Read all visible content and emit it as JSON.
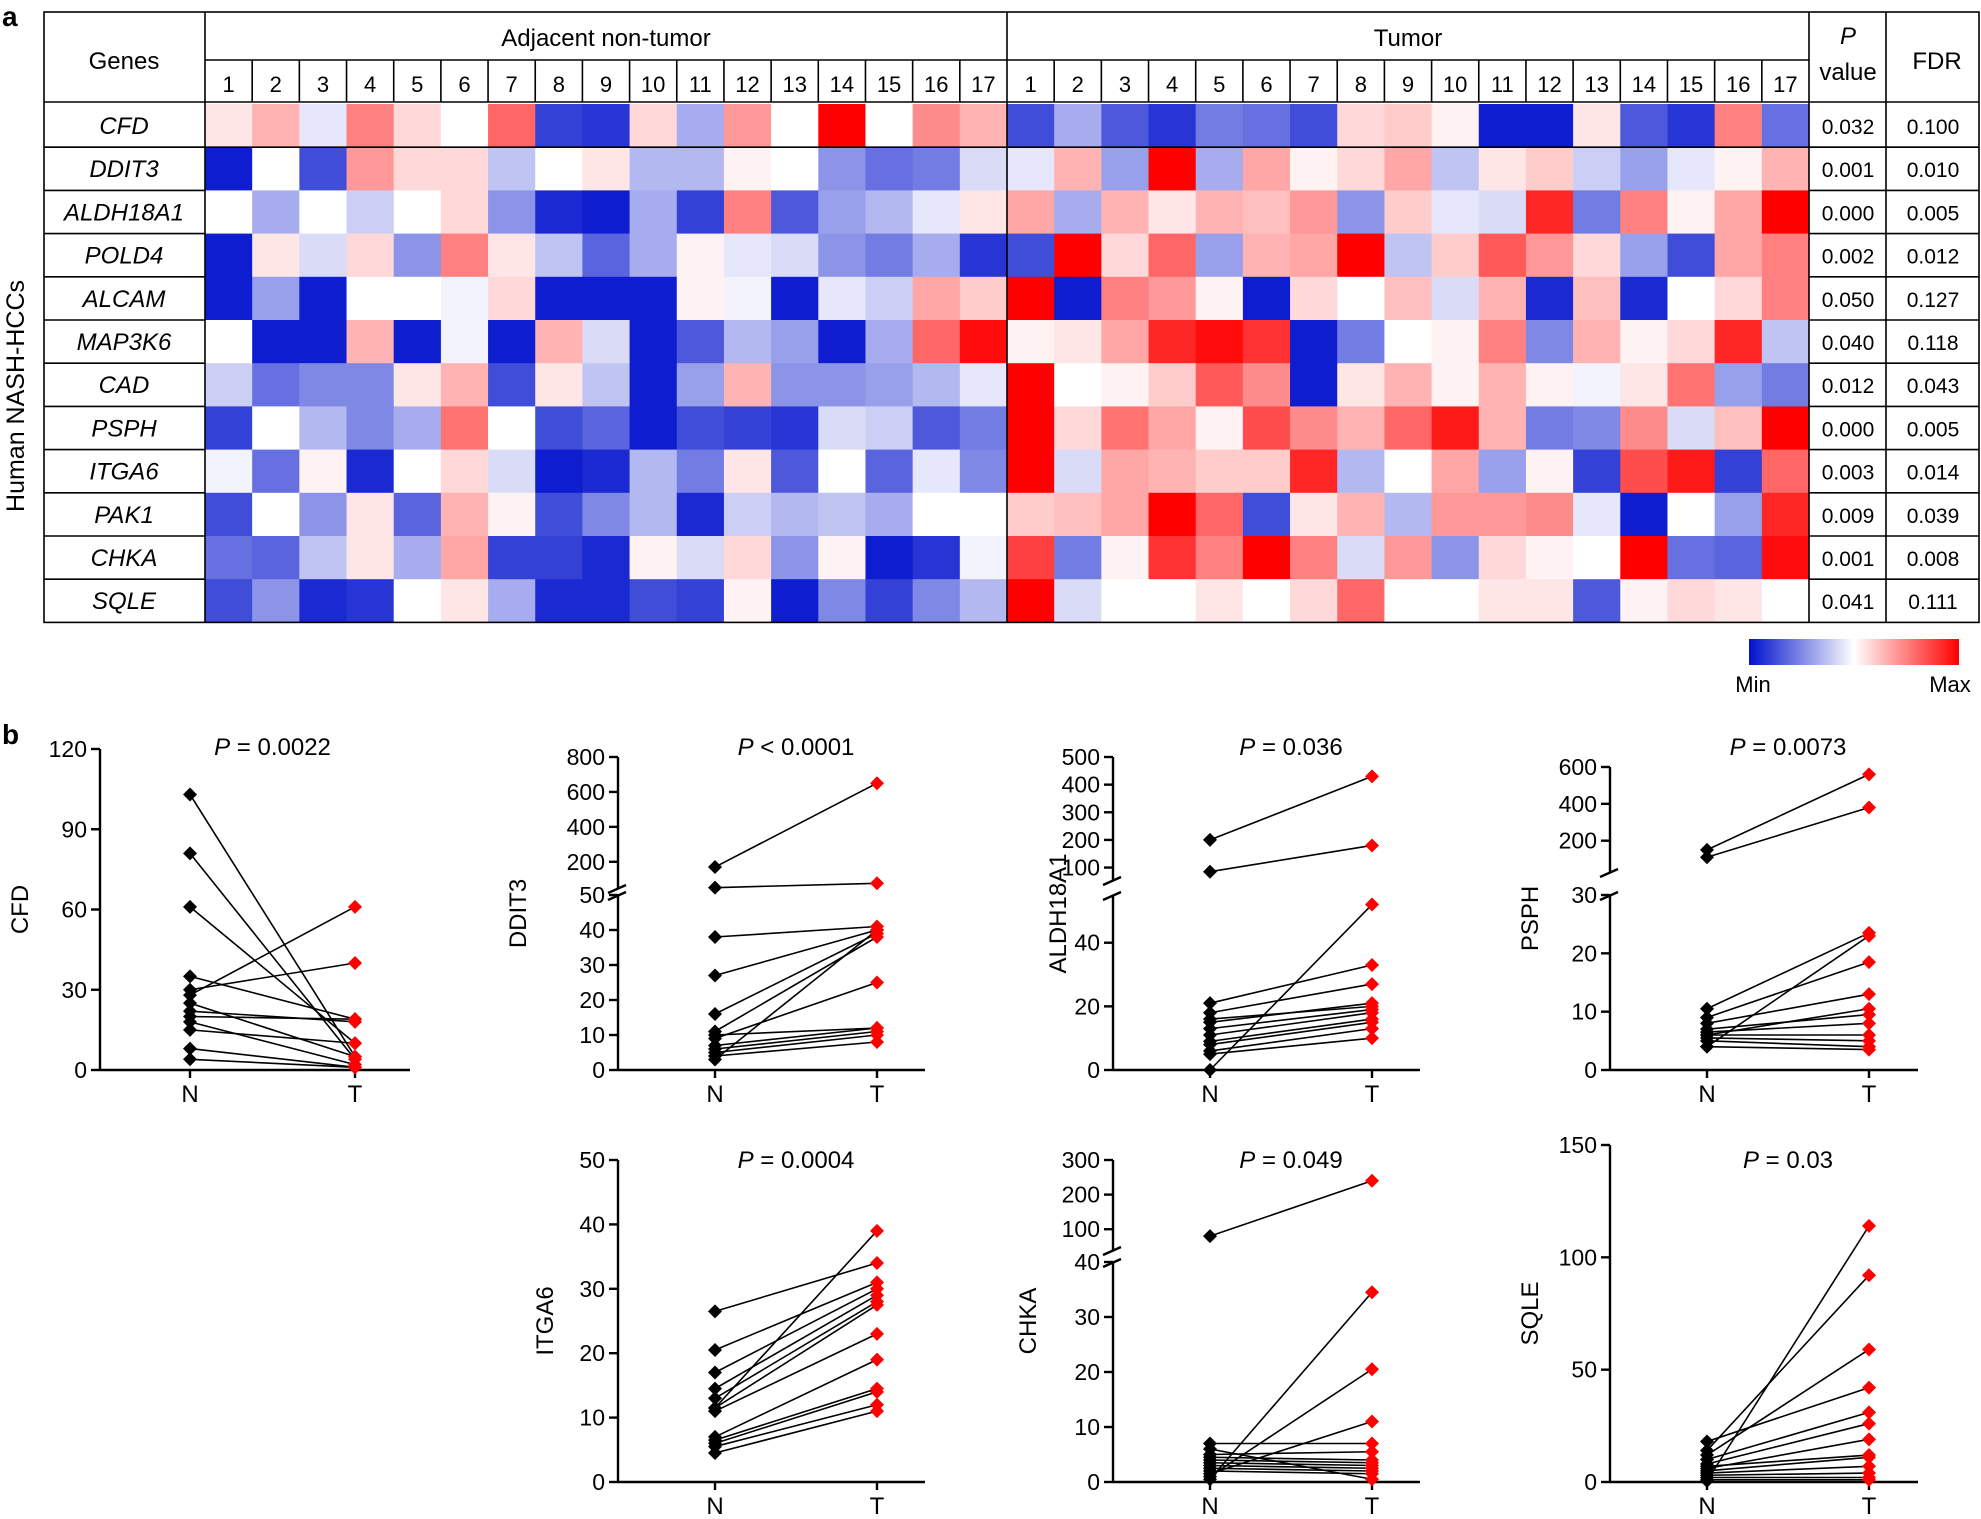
{
  "panel_labels": {
    "a": "a",
    "b": "b"
  },
  "heatmap": {
    "genes_header": "Genes",
    "group_adjacent": "Adjacent non-tumor",
    "group_tumor": "Tumor",
    "side_label": "Human NASH-HCCs",
    "p_header_line1": "P",
    "p_header_line2": "value",
    "fdr_header": "FDR",
    "columns": [
      "1",
      "2",
      "3",
      "4",
      "5",
      "6",
      "7",
      "8",
      "9",
      "10",
      "11",
      "12",
      "13",
      "14",
      "15",
      "16",
      "17"
    ],
    "legend_min": "Min",
    "legend_max": "Max",
    "colors": {
      "min": "#0011cc",
      "mid": "#ffffff",
      "max": "#ff0000"
    }
  },
  "chart_data": [
    {
      "type": "heatmap",
      "title": "",
      "row_labels": [
        "CFD",
        "DDIT3",
        "ALDH18A1",
        "POLD4",
        "ALCAM",
        "MAP3K6",
        "CAD",
        "PSPH",
        "ITGA6",
        "PAK1",
        "CHKA",
        "SQLE"
      ],
      "column_groups": [
        "Adjacent non-tumor",
        "Tumor"
      ],
      "columns": [
        "1",
        "2",
        "3",
        "4",
        "5",
        "6",
        "7",
        "8",
        "9",
        "10",
        "11",
        "12",
        "13",
        "14",
        "15",
        "16",
        "17"
      ],
      "scale": "-1 (Min, blue) to 1 (Max, red)",
      "values_adjacent": [
        [
          0.1,
          0.3,
          -0.1,
          0.5,
          0.15,
          0,
          0.6,
          -0.8,
          -0.85,
          0.15,
          -0.35,
          0.4,
          0,
          1,
          0,
          0.45,
          0.3
        ],
        [
          -0.95,
          0,
          -0.75,
          0.4,
          0.15,
          0.15,
          -0.25,
          0,
          0.1,
          -0.3,
          -0.3,
          0.05,
          0,
          -0.45,
          -0.6,
          -0.55,
          -0.15
        ],
        [
          0,
          -0.35,
          0,
          -0.2,
          0,
          0.15,
          -0.45,
          -0.9,
          -0.95,
          -0.35,
          -0.8,
          0.5,
          -0.7,
          -0.4,
          -0.3,
          -0.1,
          0.1
        ],
        [
          -0.95,
          0.1,
          -0.15,
          0.15,
          -0.45,
          0.5,
          0.1,
          -0.25,
          -0.65,
          -0.35,
          0.05,
          -0.1,
          -0.15,
          -0.45,
          -0.55,
          -0.35,
          -0.85
        ],
        [
          -0.95,
          -0.4,
          -0.95,
          0,
          0,
          -0.05,
          0.15,
          -0.95,
          -0.95,
          -0.95,
          0.05,
          -0.05,
          -0.95,
          -0.1,
          -0.2,
          0.35,
          0.2
        ],
        [
          0,
          -0.95,
          -0.95,
          0.3,
          -0.95,
          -0.05,
          -0.95,
          0.3,
          -0.15,
          -0.95,
          -0.7,
          -0.3,
          -0.4,
          -0.95,
          -0.35,
          0.6,
          0.95
        ],
        [
          -0.2,
          -0.6,
          -0.5,
          -0.5,
          0.1,
          0.3,
          -0.75,
          0.1,
          -0.25,
          -0.95,
          -0.4,
          0.3,
          -0.45,
          -0.45,
          -0.4,
          -0.3,
          -0.1
        ],
        [
          -0.8,
          0,
          -0.3,
          -0.5,
          -0.35,
          0.55,
          0,
          -0.75,
          -0.65,
          -0.95,
          -0.75,
          -0.8,
          -0.85,
          -0.15,
          -0.2,
          -0.7,
          -0.55
        ],
        [
          -0.05,
          -0.6,
          0.05,
          -0.9,
          0,
          0.15,
          -0.15,
          -0.95,
          -0.9,
          -0.3,
          -0.55,
          0.1,
          -0.7,
          0,
          -0.65,
          -0.1,
          -0.5
        ],
        [
          -0.75,
          0,
          -0.45,
          0.1,
          -0.65,
          0.3,
          0.05,
          -0.75,
          -0.5,
          -0.3,
          -0.9,
          -0.2,
          -0.3,
          -0.25,
          -0.35,
          0,
          0
        ],
        [
          -0.6,
          -0.65,
          -0.25,
          0.1,
          -0.35,
          0.35,
          -0.8,
          -0.8,
          -0.9,
          0.05,
          -0.15,
          0.15,
          -0.45,
          0.05,
          -0.95,
          -0.85,
          -0.05
        ],
        [
          -0.75,
          -0.45,
          -0.9,
          -0.85,
          0,
          0.1,
          -0.35,
          -0.9,
          -0.9,
          -0.75,
          -0.8,
          0.05,
          -0.95,
          -0.5,
          -0.8,
          -0.5,
          -0.3
        ]
      ],
      "values_tumor": [
        [
          -0.75,
          -0.35,
          -0.7,
          -0.85,
          -0.55,
          -0.6,
          -0.75,
          0.15,
          0.2,
          0.05,
          -0.95,
          -0.95,
          0.1,
          -0.7,
          -0.85,
          0.5,
          -0.6
        ],
        [
          -0.1,
          0.3,
          -0.4,
          1,
          -0.35,
          0.35,
          0.05,
          0.15,
          0.35,
          -0.25,
          0.1,
          0.2,
          -0.2,
          -0.4,
          -0.1,
          0.05,
          0.3
        ],
        [
          0.35,
          -0.35,
          0.3,
          0.1,
          0.3,
          0.25,
          0.4,
          -0.45,
          0.2,
          -0.1,
          -0.15,
          0.85,
          -0.55,
          0.5,
          0.05,
          0.35,
          1
        ],
        [
          -0.75,
          1,
          0.15,
          0.6,
          -0.4,
          0.3,
          0.35,
          1,
          -0.25,
          0.2,
          0.65,
          0.4,
          0.15,
          -0.4,
          -0.75,
          0.35,
          0.5
        ],
        [
          1,
          -0.95,
          0.5,
          0.4,
          0.05,
          -0.95,
          0.15,
          0,
          0.25,
          -0.15,
          0.3,
          -0.9,
          0.25,
          -0.9,
          0,
          0.15,
          0.5
        ],
        [
          0.05,
          0.1,
          0.35,
          0.85,
          0.95,
          0.8,
          -0.95,
          -0.55,
          0,
          0.05,
          0.5,
          -0.5,
          0.3,
          0.05,
          0.15,
          0.85,
          -0.25
        ],
        [
          1,
          0,
          0.05,
          0.2,
          0.65,
          0.45,
          -0.95,
          0.1,
          0.3,
          0.05,
          0.3,
          0.05,
          -0.05,
          0.1,
          0.55,
          -0.4,
          -0.55
        ],
        [
          1,
          0.15,
          0.55,
          0.35,
          0.05,
          0.7,
          0.45,
          0.3,
          0.6,
          0.9,
          0.3,
          -0.55,
          -0.5,
          0.45,
          -0.15,
          0.25,
          1
        ],
        [
          1,
          -0.15,
          0.35,
          0.3,
          0.2,
          0.2,
          0.85,
          -0.3,
          0,
          0.35,
          -0.4,
          0.05,
          -0.8,
          0.7,
          0.9,
          -0.8,
          0.6
        ],
        [
          0.2,
          0.25,
          0.35,
          1,
          0.6,
          -0.75,
          0.1,
          0.3,
          -0.3,
          0.4,
          0.4,
          0.45,
          -0.1,
          -0.95,
          0,
          -0.4,
          0.85
        ],
        [
          0.75,
          -0.55,
          0.05,
          0.8,
          0.5,
          1,
          0.5,
          -0.15,
          0.4,
          -0.45,
          0.15,
          0.05,
          0,
          1,
          -0.6,
          -0.65,
          0.95
        ],
        [
          1,
          -0.15,
          0,
          0,
          0.1,
          0,
          0.15,
          0.6,
          0,
          0,
          0.1,
          0.1,
          -0.7,
          0.05,
          0.15,
          0.1,
          0
        ]
      ],
      "p_values": [
        "0.032",
        "0.001",
        "0.000",
        "0.002",
        "0.050",
        "0.040",
        "0.012",
        "0.000",
        "0.003",
        "0.009",
        "0.001",
        "0.041"
      ],
      "fdr_values": [
        "0.100",
        "0.010",
        "0.005",
        "0.012",
        "0.127",
        "0.118",
        "0.043",
        "0.005",
        "0.014",
        "0.039",
        "0.008",
        "0.111"
      ]
    },
    {
      "type": "line",
      "title": "CFD",
      "ylabel": "CFD",
      "p_prefix": "P",
      "p_text": " = 0.0022",
      "categories": [
        "N",
        "T"
      ],
      "ylim": [
        0,
        120
      ],
      "yticks": [
        "0",
        "30",
        "60",
        "90",
        "120"
      ],
      "pairs": [
        [
          103,
          5
        ],
        [
          81,
          4
        ],
        [
          61,
          10
        ],
        [
          35,
          19
        ],
        [
          30,
          40
        ],
        [
          28,
          61
        ],
        [
          25,
          5
        ],
        [
          20,
          19
        ],
        [
          18,
          2
        ],
        [
          15,
          10
        ],
        [
          8,
          1
        ],
        [
          4,
          1
        ],
        [
          22,
          18
        ]
      ]
    },
    {
      "type": "line",
      "title": "DDIT3",
      "ylabel": "DDIT3",
      "p_prefix": "P",
      "p_text": " < 0.0001",
      "categories": [
        "N",
        "T"
      ],
      "broken_axis": true,
      "lower_ylim": [
        0,
        50
      ],
      "upper_ylim": [
        50,
        800
      ],
      "yticks_lower": [
        "0",
        "10",
        "20",
        "30",
        "40",
        "50"
      ],
      "yticks_upper": [
        "200",
        "400",
        "600",
        "800"
      ],
      "pairs": [
        [
          170,
          650
        ],
        [
          52,
          77
        ],
        [
          38,
          41
        ],
        [
          27,
          40
        ],
        [
          16,
          39
        ],
        [
          11,
          38
        ],
        [
          9,
          25
        ],
        [
          7,
          12
        ],
        [
          6,
          11
        ],
        [
          5,
          10
        ],
        [
          4,
          8
        ],
        [
          3,
          40
        ],
        [
          10,
          12
        ]
      ]
    },
    {
      "type": "line",
      "title": "ALDH18A1",
      "ylabel": "ALDH18A1",
      "p_prefix": "P",
      "p_text": " = 0.036",
      "categories": [
        "N",
        "T"
      ],
      "broken_axis": true,
      "lower_ylim": [
        0,
        55
      ],
      "upper_ylim": [
        55,
        500
      ],
      "yticks_lower": [
        "0",
        "20",
        "40"
      ],
      "yticks_upper": [
        "100",
        "200",
        "300",
        "400",
        "500"
      ],
      "pairs": [
        [
          200,
          430
        ],
        [
          85,
          180
        ],
        [
          21,
          33
        ],
        [
          18,
          27
        ],
        [
          15,
          21
        ],
        [
          13,
          19
        ],
        [
          11,
          18
        ],
        [
          9,
          16
        ],
        [
          8,
          15
        ],
        [
          6,
          13
        ],
        [
          5,
          10
        ],
        [
          0,
          52
        ],
        [
          16,
          20
        ]
      ]
    },
    {
      "type": "line",
      "title": "PSPH",
      "ylabel": "PSPH",
      "p_prefix": "P",
      "p_text": " = 0.0073",
      "categories": [
        "N",
        "T"
      ],
      "broken_axis": true,
      "lower_ylim": [
        0,
        30
      ],
      "upper_ylim": [
        30,
        600
      ],
      "yticks_lower": [
        "0",
        "10",
        "20",
        "30"
      ],
      "yticks_upper": [
        "200",
        "400",
        "600"
      ],
      "pairs": [
        [
          150,
          560
        ],
        [
          110,
          380
        ],
        [
          10.5,
          23.5
        ],
        [
          9,
          18.5
        ],
        [
          8,
          13
        ],
        [
          7,
          9.5
        ],
        [
          6.5,
          8
        ],
        [
          6,
          6
        ],
        [
          5.5,
          5
        ],
        [
          5,
          4
        ],
        [
          4,
          3.5
        ],
        [
          4,
          23
        ],
        [
          6,
          10.5
        ]
      ]
    },
    {
      "type": "line",
      "title": "ITGA6",
      "ylabel": "ITGA6",
      "p_prefix": "P",
      "p_text": " = 0.0004",
      "categories": [
        "N",
        "T"
      ],
      "ylim": [
        0,
        50
      ],
      "yticks": [
        "0",
        "10",
        "20",
        "30",
        "40",
        "50"
      ],
      "pairs": [
        [
          26.5,
          34
        ],
        [
          20.5,
          31
        ],
        [
          17,
          30
        ],
        [
          14.5,
          29
        ],
        [
          13,
          28
        ],
        [
          11.5,
          27.5
        ],
        [
          11,
          23
        ],
        [
          7,
          19
        ],
        [
          6.5,
          14.5
        ],
        [
          6,
          14
        ],
        [
          5.5,
          12
        ],
        [
          4.5,
          11
        ],
        [
          11.5,
          39
        ]
      ]
    },
    {
      "type": "line",
      "title": "CHKA",
      "ylabel": "CHKA",
      "p_prefix": "P",
      "p_text": " = 0.049",
      "categories": [
        "N",
        "T"
      ],
      "broken_axis": true,
      "lower_ylim": [
        0,
        40
      ],
      "upper_ylim": [
        40,
        300
      ],
      "yticks_lower": [
        "0",
        "10",
        "20",
        "30",
        "40"
      ],
      "yticks_upper": [
        "100",
        "200",
        "300"
      ],
      "pairs": [
        [
          80,
          240
        ],
        [
          7,
          7
        ],
        [
          5,
          5.5
        ],
        [
          4.5,
          4
        ],
        [
          4,
          3.5
        ],
        [
          3.5,
          3
        ],
        [
          3,
          2.5
        ],
        [
          2.5,
          2
        ],
        [
          2,
          1.5
        ],
        [
          1.5,
          11
        ],
        [
          1,
          20.5
        ],
        [
          0.5,
          34.5
        ],
        [
          6,
          0.5
        ]
      ]
    },
    {
      "type": "line",
      "title": "SQLE",
      "ylabel": "SQLE",
      "p_prefix": "P",
      "p_text": " = 0.03",
      "categories": [
        "N",
        "T"
      ],
      "ylim": [
        0,
        150
      ],
      "yticks": [
        "0",
        "50",
        "100",
        "150"
      ],
      "pairs": [
        [
          18,
          42
        ],
        [
          14,
          92
        ],
        [
          12,
          59
        ],
        [
          10,
          31
        ],
        [
          8,
          26
        ],
        [
          6,
          19
        ],
        [
          5,
          11
        ],
        [
          4,
          7
        ],
        [
          3,
          4
        ],
        [
          2,
          2
        ],
        [
          1,
          1
        ],
        [
          0.5,
          114
        ],
        [
          7,
          12
        ]
      ]
    }
  ]
}
